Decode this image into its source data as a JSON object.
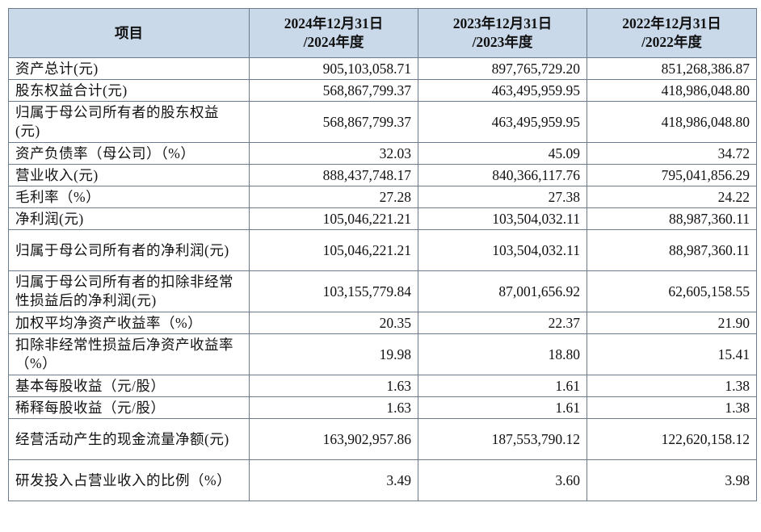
{
  "table": {
    "headers": [
      {
        "line1": "项目",
        "line2": ""
      },
      {
        "line1": "2024年12月31日",
        "line2": "/2024年度"
      },
      {
        "line1": "2023年12月31日",
        "line2": "/2023年度"
      },
      {
        "line1": "2022年12月31日",
        "line2": "/2022年度"
      }
    ],
    "rows": [
      {
        "label": "资产总计(元)",
        "values": [
          "905,103,058.71",
          "897,765,729.20",
          "851,268,386.87"
        ]
      },
      {
        "label": "股东权益合计(元)",
        "values": [
          "568,867,799.37",
          "463,495,959.95",
          "418,986,048.80"
        ]
      },
      {
        "label": "归属于母公司所有者的股东权益(元)",
        "values": [
          "568,867,799.37",
          "463,495,959.95",
          "418,986,048.80"
        ]
      },
      {
        "label": "资产负债率（母公司）（%）",
        "values": [
          "32.03",
          "45.09",
          "34.72"
        ]
      },
      {
        "label": "营业收入(元)",
        "values": [
          "888,437,748.17",
          "840,366,117.76",
          "795,041,856.29"
        ]
      },
      {
        "label": "毛利率（%）",
        "values": [
          "27.28",
          "27.38",
          "24.22"
        ]
      },
      {
        "label": "净利润(元)",
        "values": [
          "105,046,221.21",
          "103,504,032.11",
          "88,987,360.11"
        ]
      },
      {
        "label": "归属于母公司所有者的净利润(元)",
        "values": [
          "105,046,221.21",
          "103,504,032.11",
          "88,987,360.11"
        ]
      },
      {
        "label": "归属于母公司所有者的扣除非经常性损益后的净利润(元)",
        "values": [
          "103,155,779.84",
          "87,001,656.92",
          "62,605,158.55"
        ]
      },
      {
        "label": "加权平均净资产收益率（%）",
        "values": [
          "20.35",
          "22.37",
          "21.90"
        ]
      },
      {
        "label": "扣除非经常性损益后净资产收益率（%）",
        "values": [
          "19.98",
          "18.80",
          "15.41"
        ]
      },
      {
        "label": "基本每股收益（元/股）",
        "values": [
          "1.63",
          "1.61",
          "1.38"
        ]
      },
      {
        "label": "稀释每股收益（元/股）",
        "values": [
          "1.63",
          "1.61",
          "1.38"
        ]
      },
      {
        "label": "经营活动产生的现金流量净额(元)",
        "values": [
          "163,902,957.86",
          "187,553,790.12",
          "122,620,158.12"
        ]
      },
      {
        "label": "研发投入占营业收入的比例（%）",
        "values": [
          "3.49",
          "3.60",
          "3.98"
        ]
      }
    ]
  }
}
